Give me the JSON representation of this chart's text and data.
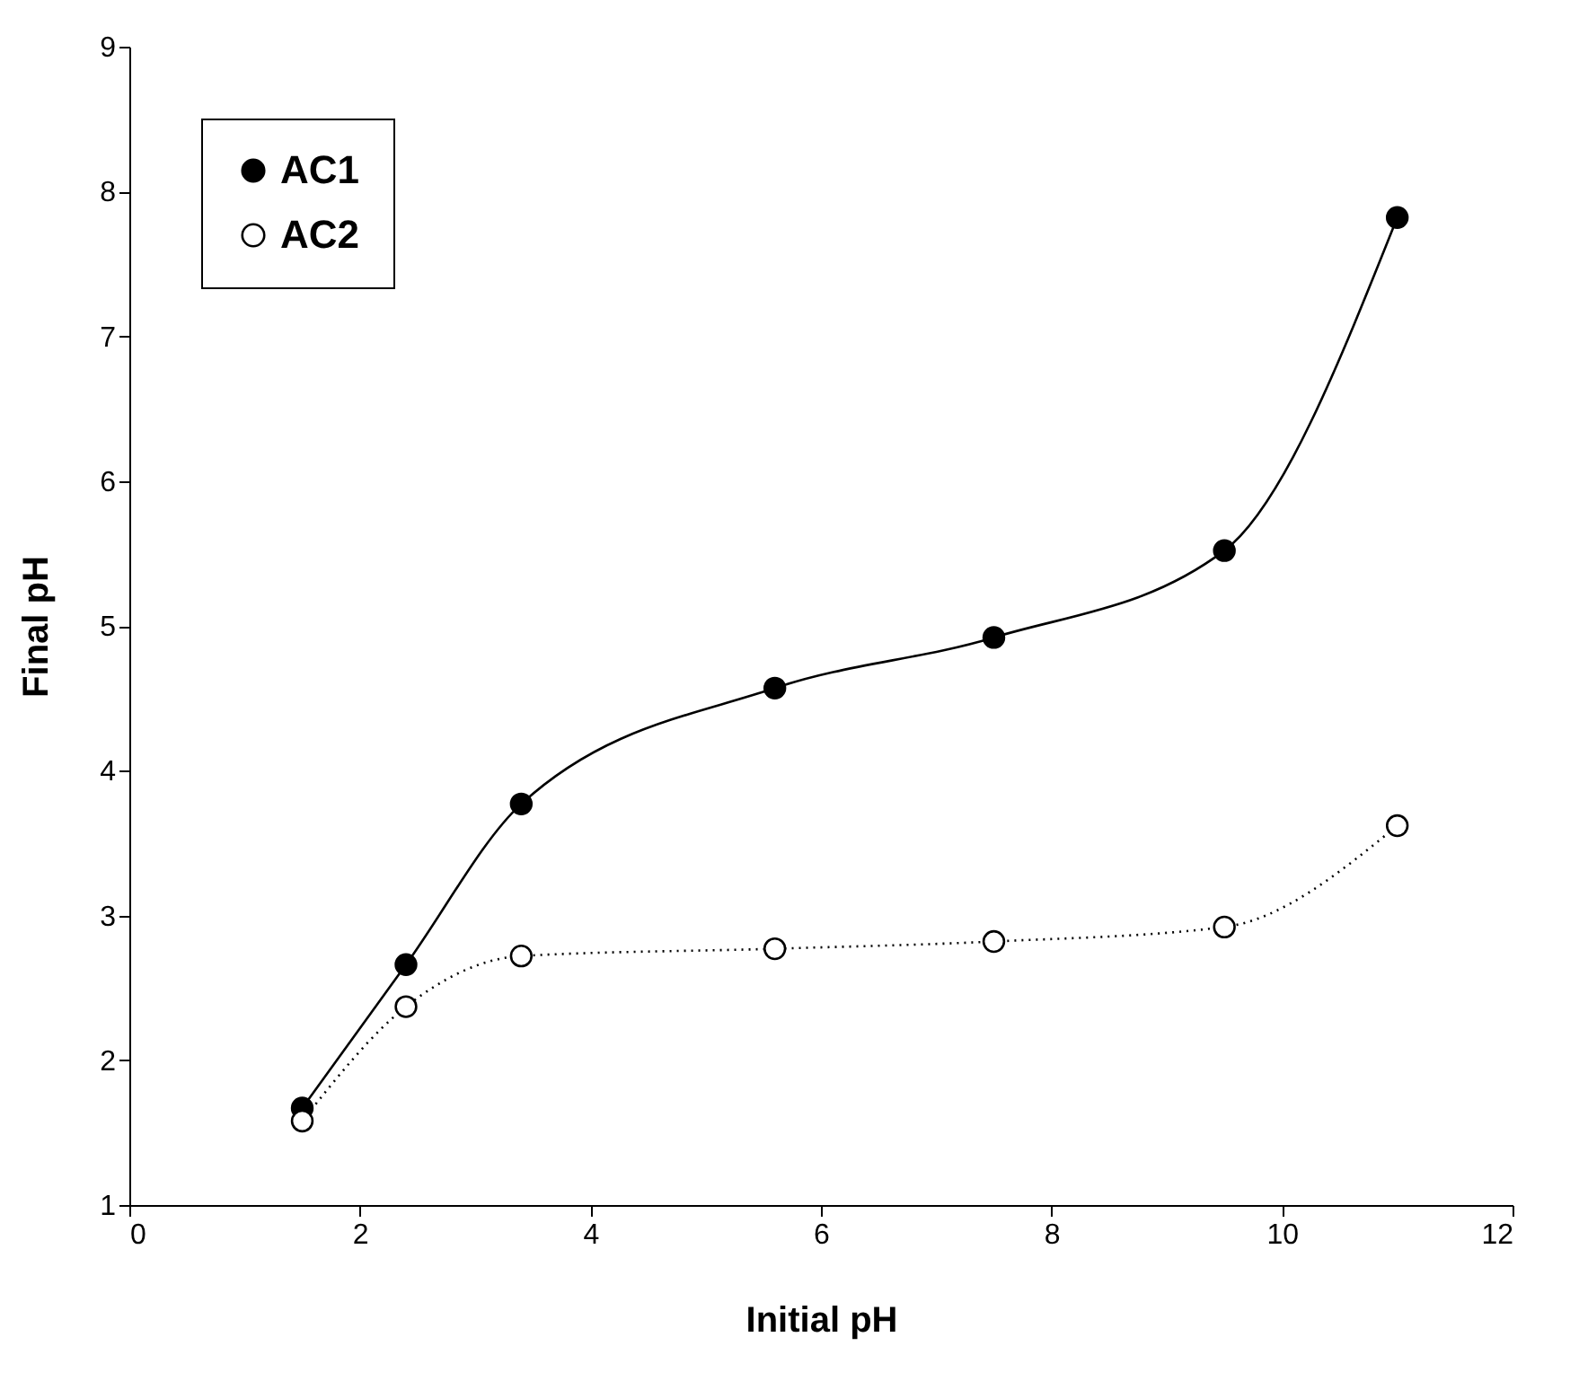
{
  "chart_data": {
    "type": "line",
    "xlabel": "Initial pH",
    "ylabel": "Final pH",
    "x": [
      1.5,
      2.4,
      3.4,
      5.6,
      7.5,
      9.5,
      11
    ],
    "series": [
      {
        "name": "AC1",
        "color": "#000000",
        "line_style": "solid",
        "values": [
          1.67,
          2.66,
          3.77,
          4.57,
          4.92,
          5.52,
          7.82
        ]
      },
      {
        "name": "AC2",
        "color": "#000000",
        "line_style": "dotted",
        "values": [
          1.58,
          2.37,
          2.72,
          2.77,
          2.82,
          2.92,
          3.62
        ]
      }
    ],
    "xlim": [
      0,
      12
    ],
    "xticks": [
      0,
      2,
      4,
      6,
      8,
      10,
      12
    ],
    "ylim": [
      1,
      9
    ],
    "yticks": [
      1,
      2,
      3,
      4,
      5,
      6,
      7,
      8,
      9
    ],
    "grid": false,
    "legend": "top left",
    "marker": "circle"
  }
}
